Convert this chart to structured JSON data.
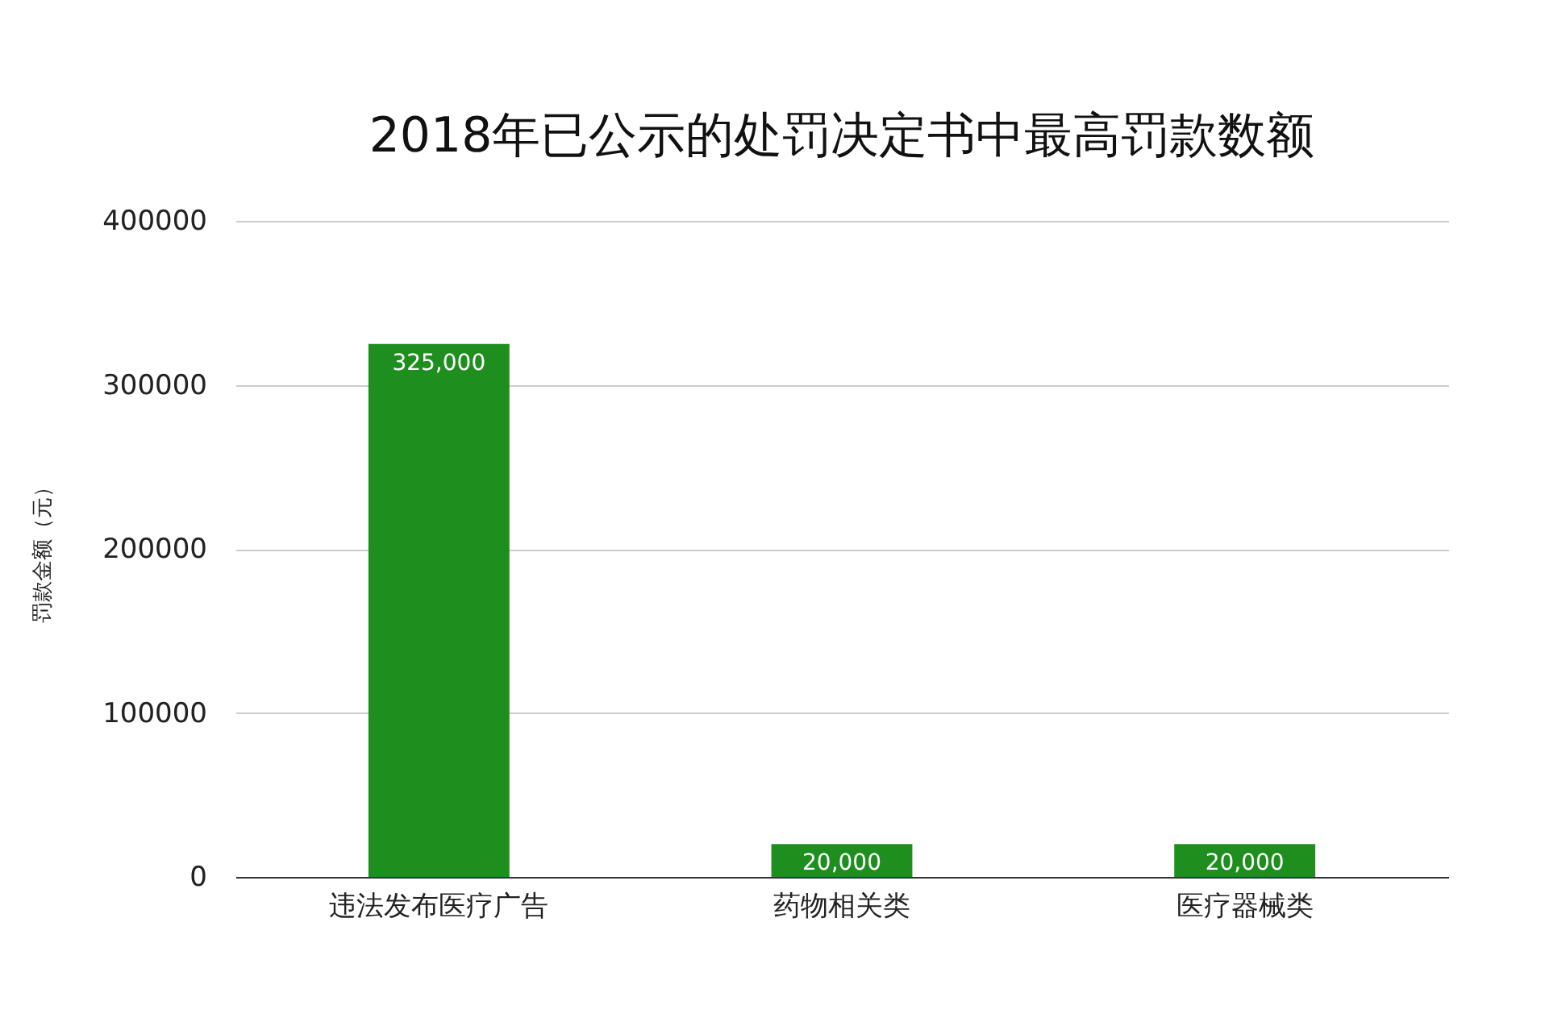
{
  "chart_data": {
    "type": "bar",
    "title": "2018年已公示的处罚决定书中最高罚款数额",
    "ylabel": "罚款金额（元）",
    "categories": [
      "违法发布医疗广告",
      "药物相关类",
      "医疗器械类"
    ],
    "values": [
      325000,
      20000,
      20000
    ],
    "color": "#1e8f1e",
    "value_labels": [
      "325,000",
      "20,000",
      "20,000"
    ],
    "ylim": [
      0,
      400000
    ],
    "yticks": [
      0,
      100000,
      200000,
      300000,
      400000
    ],
    "grid": "y"
  }
}
